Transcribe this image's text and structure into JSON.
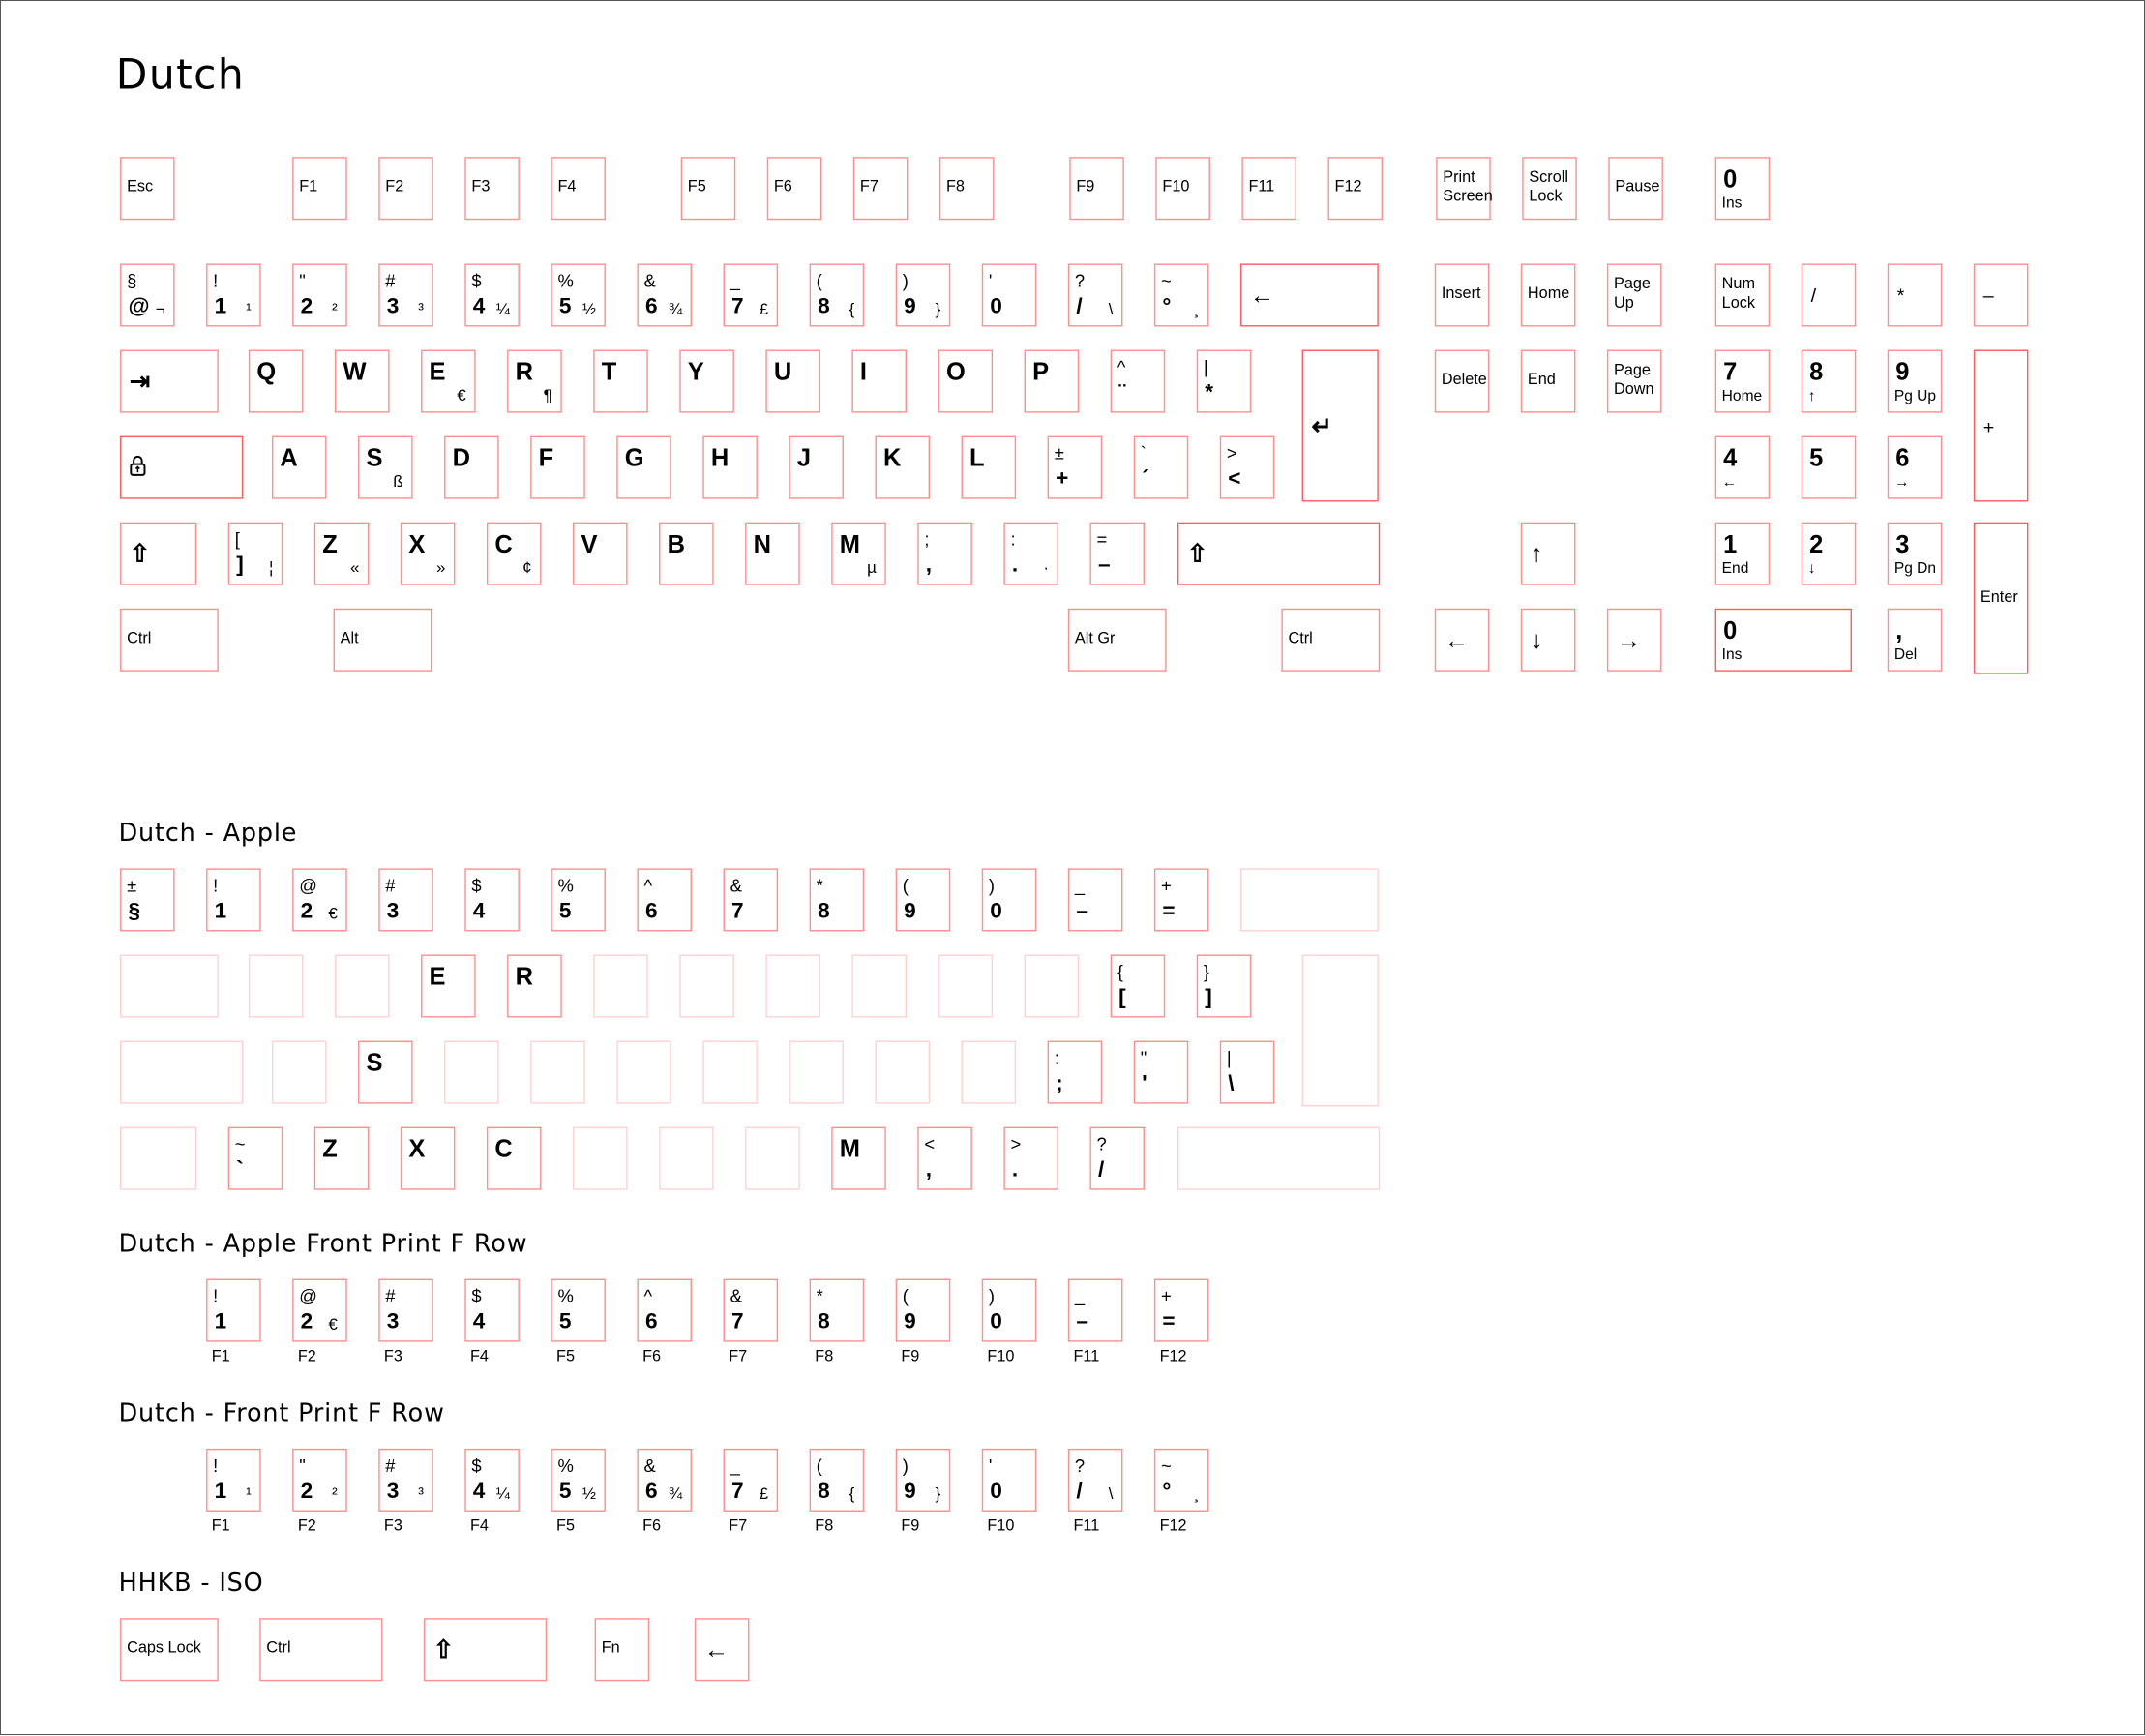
{
  "titles": {
    "main": "Dutch",
    "apple": "Dutch - Apple",
    "apple_front": "Dutch - Apple Front Print F Row",
    "front": "Dutch - Front Print F Row",
    "hhkb": "HHKB - ISO"
  },
  "colors": {
    "key_border": "#ff8f8f",
    "key_border_strong": "#ff5c5c",
    "key_border_blank": "#ffd2d2"
  },
  "main_keys": [
    {
      "c": "Esc"
    },
    {
      "c": "F1"
    },
    {
      "c": "F2"
    },
    {
      "c": "F3"
    },
    {
      "c": "F4"
    },
    {
      "c": "F5"
    },
    {
      "c": "F6"
    },
    {
      "c": "F7"
    },
    {
      "c": "F8"
    },
    {
      "c": "F9"
    },
    {
      "c": "F10"
    },
    {
      "c": "F11"
    },
    {
      "c": "F12"
    },
    {
      "c": "Print\nScreen"
    },
    {
      "c": "Scroll\nLock"
    },
    {
      "c": "Pause"
    },
    {
      "big": "0",
      "b": "Ins"
    },
    {
      "t": "§",
      "bb": "@",
      "r": "¬"
    },
    {
      "t": "!",
      "bb": "1",
      "r": "¹"
    },
    {
      "t": "\"",
      "bb": "2",
      "r": "²"
    },
    {
      "t": "#",
      "bb": "3",
      "r": "³"
    },
    {
      "t": "$",
      "bb": "4",
      "r": "¼"
    },
    {
      "t": "%",
      "bb": "5",
      "r": "½"
    },
    {
      "t": "&",
      "bb": "6",
      "r": "¾"
    },
    {
      "t": "_",
      "bb": "7",
      "r": "£"
    },
    {
      "t": "(",
      "bb": "8",
      "r": "{"
    },
    {
      "t": ")",
      "bb": "9",
      "r": "}"
    },
    {
      "t": "'",
      "bb": "0"
    },
    {
      "t": "?",
      "bb": "/",
      "r": "\\"
    },
    {
      "t": "~",
      "bb": "°",
      "r": "¸"
    },
    {
      "icon": "backspace-icon",
      "strong": true
    },
    {
      "icon": "tab-icon"
    },
    {
      "big": "Q"
    },
    {
      "big": "W"
    },
    {
      "big": "E",
      "r": "€"
    },
    {
      "big": "R",
      "r": "¶"
    },
    {
      "big": "T"
    },
    {
      "big": "Y"
    },
    {
      "big": "U"
    },
    {
      "big": "I"
    },
    {
      "big": "O"
    },
    {
      "big": "P"
    },
    {
      "t": "^",
      "bb": "¨"
    },
    {
      "t": "|",
      "bb": "*"
    },
    {
      "icon": "enter-icon",
      "strong": true
    },
    {
      "icon": "caps-lock-icon",
      "strong": true
    },
    {
      "big": "A"
    },
    {
      "big": "S",
      "r": "ß"
    },
    {
      "big": "D"
    },
    {
      "big": "F"
    },
    {
      "big": "G"
    },
    {
      "big": "H"
    },
    {
      "big": "J"
    },
    {
      "big": "K"
    },
    {
      "big": "L"
    },
    {
      "t": "±",
      "bb": "+"
    },
    {
      "t": "`",
      "bb": "´"
    },
    {
      "t": ">",
      "bb": "<"
    },
    {
      "icon": "shift-icon"
    },
    {
      "t": "[",
      "bb": "]",
      "r": "¦"
    },
    {
      "big": "Z",
      "r": "«"
    },
    {
      "big": "X",
      "r": "»"
    },
    {
      "big": "C",
      "r": "¢"
    },
    {
      "big": "V"
    },
    {
      "big": "B"
    },
    {
      "big": "N"
    },
    {
      "big": "M",
      "r": "µ"
    },
    {
      "t": ";",
      "bb": ","
    },
    {
      "t": ":",
      "bb": ".",
      "r": "·"
    },
    {
      "t": "=",
      "bb": "–"
    },
    {
      "icon": "shift-icon",
      "strong": true
    },
    {
      "c": "Ctrl"
    },
    {
      "c": "Alt"
    },
    {
      "c": "Alt Gr"
    },
    {
      "c": "Ctrl"
    },
    {
      "c": "Insert"
    },
    {
      "c": "Home"
    },
    {
      "c": "Page\nUp"
    },
    {
      "c": "Delete"
    },
    {
      "c": "End"
    },
    {
      "c": "Page\nDown"
    },
    {
      "icon": "arrow-up-icon"
    },
    {
      "icon": "arrow-left-icon"
    },
    {
      "icon": "arrow-down-icon"
    },
    {
      "icon": "arrow-right-icon"
    },
    {
      "c": "Num\nLock"
    },
    {
      "icon": "slash-icon",
      "glyph": "/"
    },
    {
      "icon": "asterisk-icon",
      "glyph": "*"
    },
    {
      "icon": "minus-icon",
      "glyph": "–"
    },
    {
      "big": "7",
      "b": "Home"
    },
    {
      "big": "8",
      "b": "↑"
    },
    {
      "big": "9",
      "b": "Pg Up"
    },
    {
      "icon": "plus-icon",
      "glyph": "+",
      "strong": true
    },
    {
      "big": "4",
      "b": "←"
    },
    {
      "big": "5"
    },
    {
      "big": "6",
      "b": "→"
    },
    {
      "big": "1",
      "b": "End"
    },
    {
      "big": "2",
      "b": "↓"
    },
    {
      "big": "3",
      "b": "Pg Dn"
    },
    {
      "c": "Enter",
      "strong": true
    },
    {
      "big": "0",
      "b": "Ins",
      "strong": true
    },
    {
      "big": ",",
      "b": "Del"
    }
  ],
  "apple_keys": [
    {
      "t": "±",
      "bb": "§"
    },
    {
      "t": "!",
      "bb": "1"
    },
    {
      "t": "@",
      "bb": "2",
      "r": "€"
    },
    {
      "t": "#",
      "bb": "3"
    },
    {
      "t": "$",
      "bb": "4"
    },
    {
      "t": "%",
      "bb": "5"
    },
    {
      "t": "^",
      "bb": "6"
    },
    {
      "t": "&",
      "bb": "7"
    },
    {
      "t": "*",
      "bb": "8"
    },
    {
      "t": "(",
      "bb": "9"
    },
    {
      "t": ")",
      "bb": "0"
    },
    {
      "t": "_",
      "bb": "–"
    },
    {
      "t": "+",
      "bb": "="
    },
    {
      "blank": true
    },
    {
      "blank": true
    },
    {
      "blank": true
    },
    {
      "blank": true
    },
    {
      "big": "E"
    },
    {
      "big": "R"
    },
    {
      "blank": true
    },
    {
      "blank": true
    },
    {
      "blank": true
    },
    {
      "blank": true
    },
    {
      "blank": true
    },
    {
      "blank": true
    },
    {
      "t": "{",
      "bb": "["
    },
    {
      "t": "}",
      "bb": "]"
    },
    {
      "blank": true
    },
    {
      "blank": true
    },
    {
      "blank": true
    },
    {
      "big": "S"
    },
    {
      "blank": true
    },
    {
      "blank": true
    },
    {
      "blank": true
    },
    {
      "blank": true
    },
    {
      "blank": true
    },
    {
      "blank": true
    },
    {
      "blank": true
    },
    {
      "t": ":",
      "bb": ";"
    },
    {
      "t": "\"",
      "bb": "'"
    },
    {
      "t": "|",
      "bb": "\\"
    },
    {
      "blank": true
    },
    {
      "t": "~",
      "bb": "`"
    },
    {
      "big": "Z"
    },
    {
      "big": "X"
    },
    {
      "big": "C"
    },
    {
      "blank": true
    },
    {
      "blank": true
    },
    {
      "blank": true
    },
    {
      "big": "M"
    },
    {
      "t": "<",
      "bb": ","
    },
    {
      "t": ">",
      "bb": "."
    },
    {
      "t": "?",
      "bb": "/"
    },
    {
      "blank": true
    }
  ],
  "apple_front_keys": [
    {
      "t": "!",
      "bb": "1",
      "f": "F1"
    },
    {
      "t": "@",
      "bb": "2",
      "r": "€",
      "f": "F2"
    },
    {
      "t": "#",
      "bb": "3",
      "f": "F3"
    },
    {
      "t": "$",
      "bb": "4",
      "f": "F4"
    },
    {
      "t": "%",
      "bb": "5",
      "f": "F5"
    },
    {
      "t": "^",
      "bb": "6",
      "f": "F6"
    },
    {
      "t": "&",
      "bb": "7",
      "f": "F7"
    },
    {
      "t": "*",
      "bb": "8",
      "f": "F8"
    },
    {
      "t": "(",
      "bb": "9",
      "f": "F9"
    },
    {
      "t": ")",
      "bb": "0",
      "f": "F10"
    },
    {
      "t": "_",
      "bb": "–",
      "f": "F11"
    },
    {
      "t": "+",
      "bb": "=",
      "f": "F12"
    }
  ],
  "front_keys": [
    {
      "t": "!",
      "bb": "1",
      "r": "¹",
      "f": "F1"
    },
    {
      "t": "\"",
      "bb": "2",
      "r": "²",
      "f": "F2"
    },
    {
      "t": "#",
      "bb": "3",
      "r": "³",
      "f": "F3"
    },
    {
      "t": "$",
      "bb": "4",
      "r": "¼",
      "f": "F4"
    },
    {
      "t": "%",
      "bb": "5",
      "r": "½",
      "f": "F5"
    },
    {
      "t": "&",
      "bb": "6",
      "r": "¾",
      "f": "F6"
    },
    {
      "t": "_",
      "bb": "7",
      "r": "£",
      "f": "F7"
    },
    {
      "t": "(",
      "bb": "8",
      "r": "{",
      "f": "F8"
    },
    {
      "t": ")",
      "bb": "9",
      "r": "}",
      "f": "F9"
    },
    {
      "t": "'",
      "bb": "0",
      "f": "F10"
    },
    {
      "t": "?",
      "bb": "/",
      "r": "\\",
      "f": "F11"
    },
    {
      "t": "~",
      "bb": "°",
      "r": "¸",
      "f": "F12"
    }
  ],
  "hhkb_keys": [
    {
      "c": "Caps Lock"
    },
    {
      "c": "Ctrl"
    },
    {
      "icon": "shift-icon"
    },
    {
      "c": "Fn"
    },
    {
      "icon": "backspace-icon"
    }
  ]
}
